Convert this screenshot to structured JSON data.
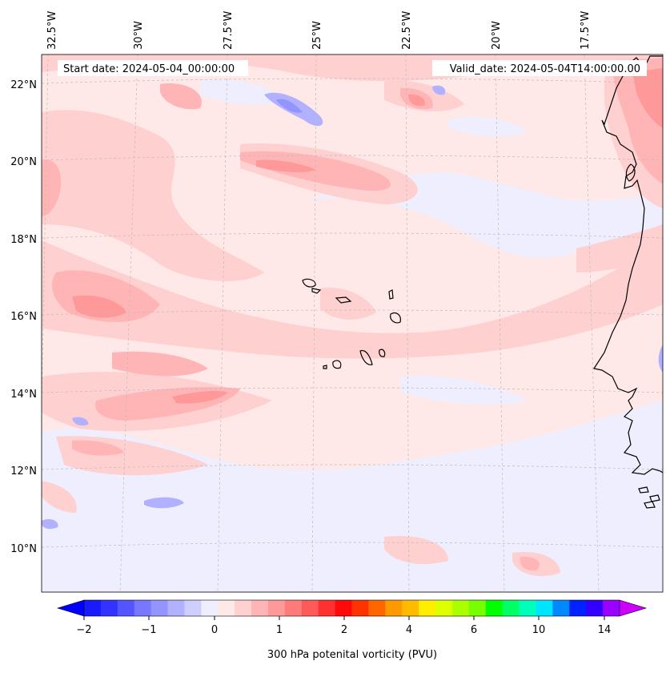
{
  "map": {
    "start_label": "Start date: 2024-05-04_00:00:00",
    "valid_label": "Valid_date: 2024-05-04T14:00:00.00",
    "lon_labels": [
      "32.5°W",
      "30°W",
      "27.5°W",
      "25°W",
      "22.5°W",
      "20°W",
      "17.5°W"
    ],
    "lat_labels": [
      "22°N",
      "20°N",
      "18°N",
      "16°N",
      "14°N",
      "12°N",
      "10°N"
    ]
  },
  "colorbar": {
    "label": "300 hPa potenital vorticity (PVU)",
    "tick_labels": [
      "−2",
      "−1",
      "0",
      "1",
      "2",
      "4",
      "6",
      "10",
      "14"
    ],
    "colors": [
      "#1a1aff",
      "#3333ff",
      "#5555ff",
      "#7777ff",
      "#9494ff",
      "#b1b1ff",
      "#cfcfff",
      "#eeeeff",
      "#ffe8e8",
      "#ffd0d0",
      "#ffb5b5",
      "#ff9999",
      "#ff7a7a",
      "#ff5a5a",
      "#ff3030",
      "#ff0a0a",
      "#ff3300",
      "#ff6600",
      "#ff9900",
      "#ffbb00",
      "#ffee00",
      "#ddff00",
      "#aaff00",
      "#77ff00",
      "#00ff00",
      "#00ff66",
      "#00ffbb",
      "#00e5ff",
      "#0088ff",
      "#0022ff",
      "#3300ff",
      "#9900ff"
    ],
    "under_color": "#0000ff",
    "over_color": "#cc00ff"
  }
}
